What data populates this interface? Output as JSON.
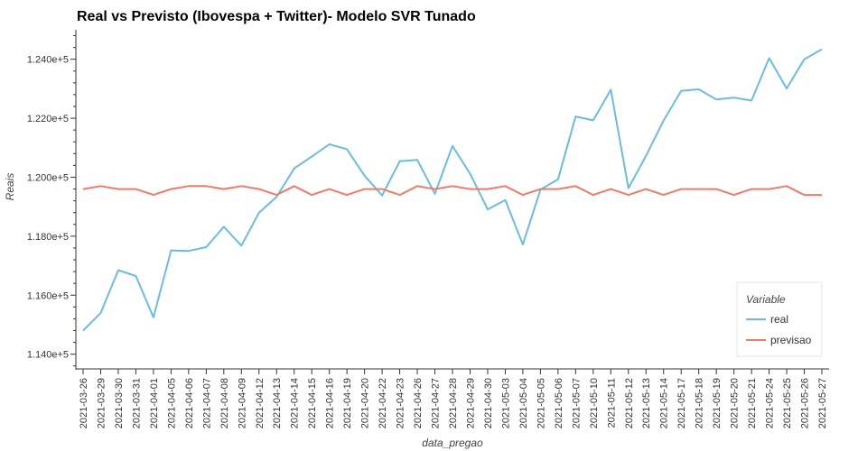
{
  "chart_data": {
    "type": "line",
    "title": "Real vs Previsto (Ibovespa + Twitter)- Modelo SVR Tunado",
    "xlabel": "data_pregao",
    "ylabel": "Reais",
    "ylim": [
      113500,
      125000
    ],
    "yticks": [
      114000,
      116000,
      118000,
      120000,
      122000,
      124000
    ],
    "ytick_labels": [
      "1.140e+5",
      "1.160e+5",
      "1.180e+5",
      "1.200e+5",
      "1.220e+5",
      "1.240e+5"
    ],
    "categories": [
      "2021-03-26",
      "2021-03-29",
      "2021-03-30",
      "2021-03-31",
      "2021-04-01",
      "2021-04-05",
      "2021-04-06",
      "2021-04-07",
      "2021-04-08",
      "2021-04-09",
      "2021-04-12",
      "2021-04-13",
      "2021-04-14",
      "2021-04-15",
      "2021-04-16",
      "2021-04-19",
      "2021-04-20",
      "2021-04-22",
      "2021-04-23",
      "2021-04-26",
      "2021-04-27",
      "2021-04-28",
      "2021-04-29",
      "2021-04-30",
      "2021-05-03",
      "2021-05-04",
      "2021-05-05",
      "2021-05-06",
      "2021-05-07",
      "2021-05-10",
      "2021-05-11",
      "2021-05-12",
      "2021-05-13",
      "2021-05-14",
      "2021-05-17",
      "2021-05-18",
      "2021-05-19",
      "2021-05-20",
      "2021-05-21",
      "2021-05-24",
      "2021-05-25",
      "2021-05-26",
      "2021-05-27"
    ],
    "grid": false,
    "legend": {
      "title": "Variable",
      "position": "bottom-right"
    },
    "series": [
      {
        "name": "real",
        "color": "#6bbde0",
        "values": [
          114800,
          115400,
          116850,
          116650,
          115250,
          117520,
          117500,
          117630,
          118320,
          117680,
          118800,
          119330,
          120300,
          120700,
          121120,
          120950,
          120050,
          119380,
          120540,
          120590,
          119440,
          121060,
          120120,
          118910,
          119230,
          117720,
          119580,
          119930,
          122060,
          121930,
          122970,
          119630,
          120720,
          121920,
          122930,
          122980,
          122640,
          122700,
          122600,
          124040,
          123010,
          124000,
          124340
        ]
      },
      {
        "name": "previsao",
        "color": "#f07a68",
        "values": [
          119600,
          119700,
          119600,
          119600,
          119400,
          119600,
          119700,
          119700,
          119600,
          119700,
          119600,
          119400,
          119700,
          119400,
          119600,
          119400,
          119600,
          119600,
          119400,
          119700,
          119600,
          119700,
          119600,
          119600,
          119700,
          119400,
          119600,
          119600,
          119700,
          119400,
          119600,
          119400,
          119600,
          119400,
          119600,
          119600,
          119600,
          119400,
          119600,
          119600,
          119700,
          119400,
          119400
        ]
      }
    ]
  }
}
